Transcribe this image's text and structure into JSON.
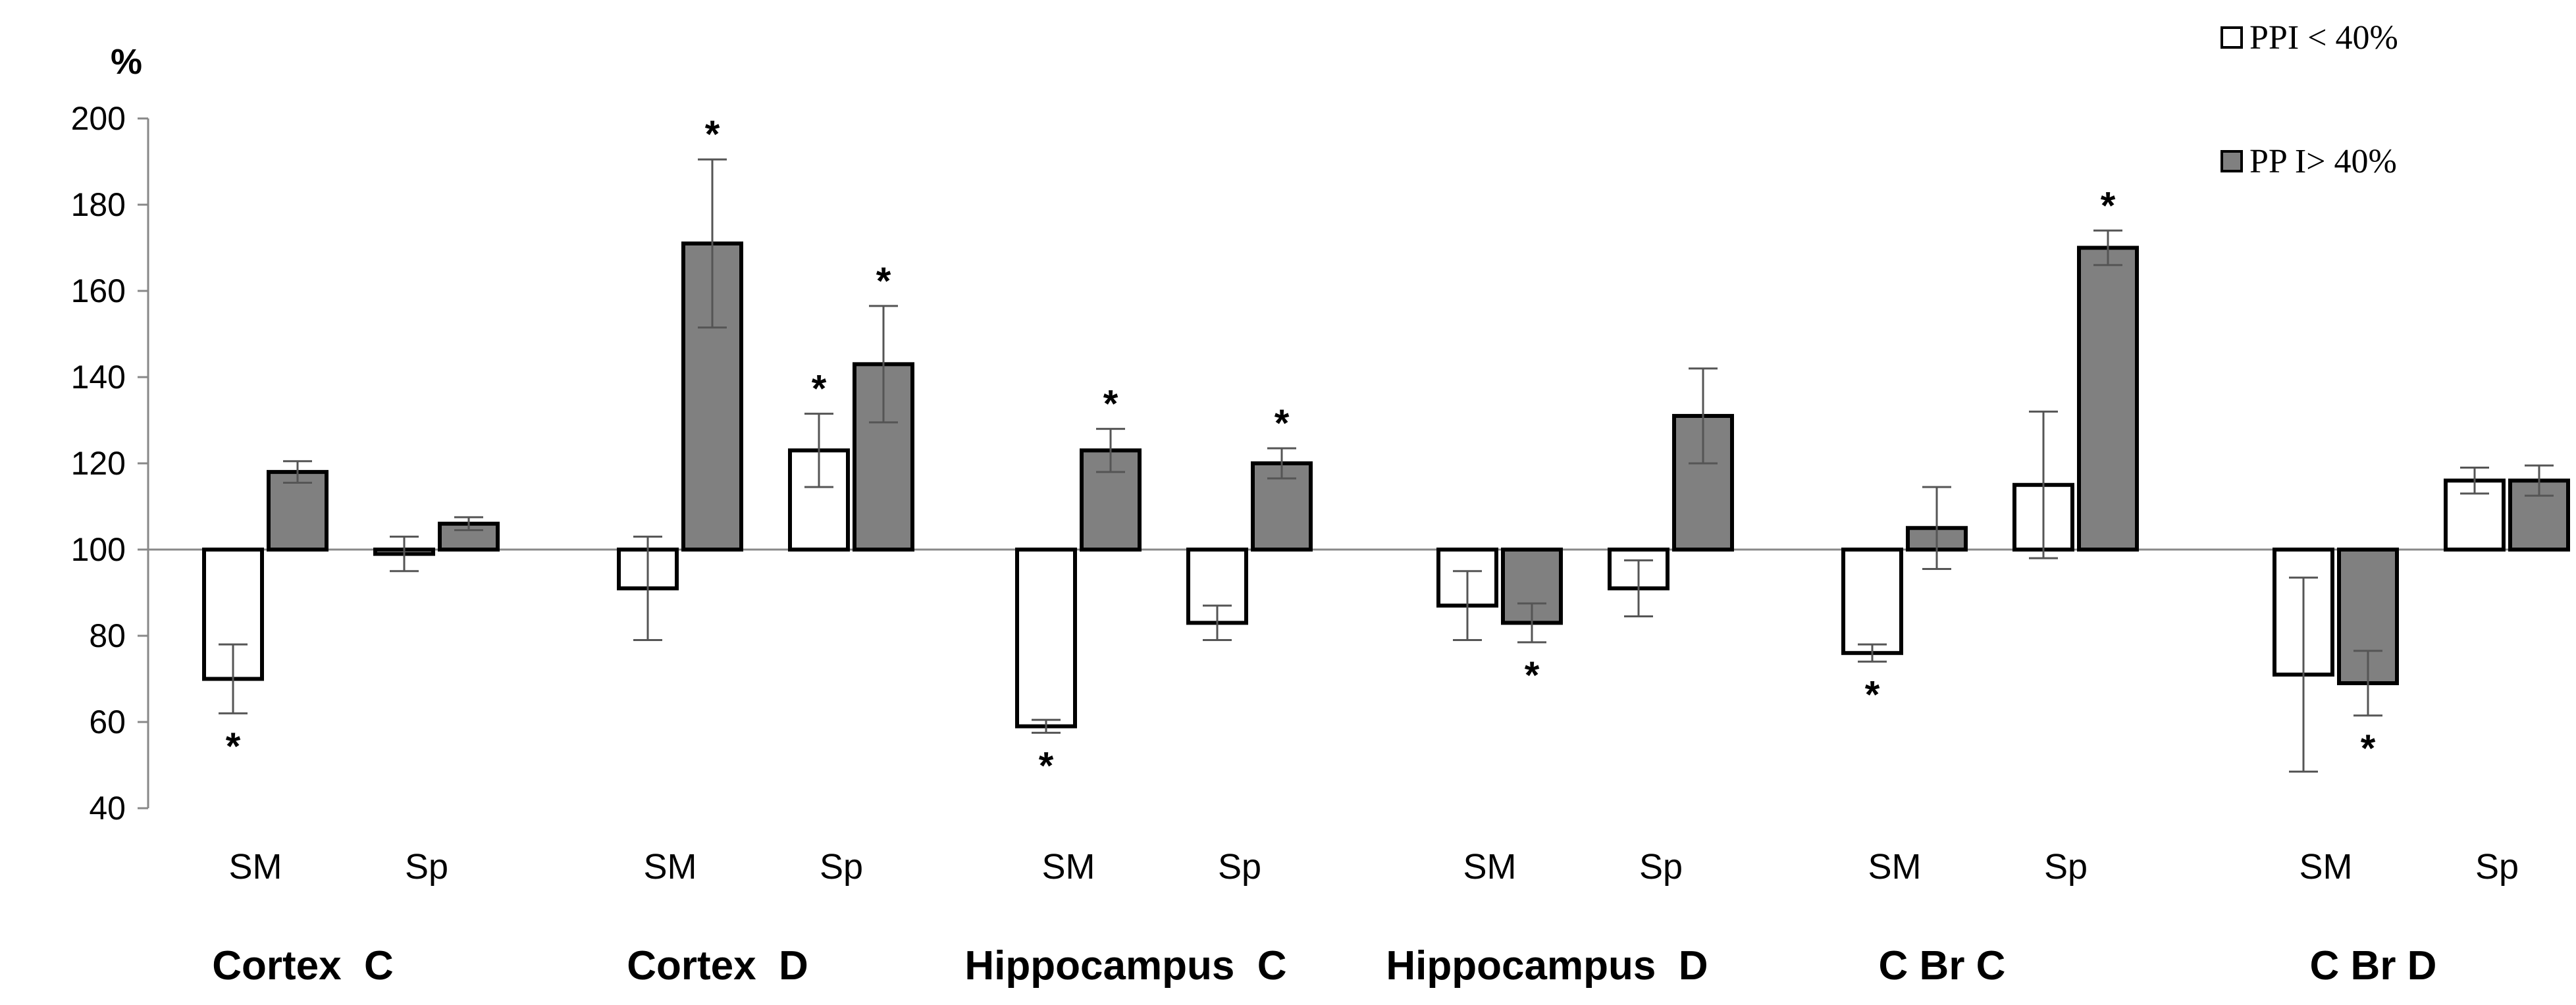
{
  "chart_data": {
    "type": "bar",
    "title": "",
    "ylabel": "%",
    "ylim": [
      40,
      200
    ],
    "yticks": [
      40,
      60,
      80,
      100,
      120,
      140,
      160,
      180,
      200
    ],
    "baseline": 100,
    "groups": [
      "Cortex  C",
      "Cortex  D",
      "Hippocampus  C",
      "Hippocampus  D",
      "C Br C",
      "C Br D"
    ],
    "subcategories": [
      "SM",
      "Sp"
    ],
    "series": [
      {
        "name": "PPI < 40%",
        "color": "#ffffff",
        "values": [
          70,
          99,
          91,
          123,
          59,
          83,
          87,
          91,
          76,
          115,
          71,
          116
        ],
        "errors": [
          8,
          4,
          12,
          8.5,
          1.5,
          4,
          8,
          6.5,
          2,
          17,
          22.5,
          3
        ],
        "significant": [
          true,
          false,
          false,
          true,
          true,
          false,
          false,
          false,
          true,
          false,
          false,
          false
        ]
      },
      {
        "name": "PP I> 40%",
        "color": "#808080",
        "values": [
          118,
          106,
          171,
          143,
          123,
          120,
          83,
          131,
          105,
          170,
          69,
          116
        ],
        "errors": [
          2.5,
          1.5,
          19.5,
          13.5,
          5,
          3.5,
          4.5,
          11,
          9.5,
          4,
          7.5,
          3.5
        ],
        "significant": [
          false,
          false,
          true,
          true,
          true,
          true,
          true,
          false,
          false,
          true,
          true,
          false
        ]
      }
    ],
    "significance_marker": "*",
    "legend": {
      "position": "top-right",
      "entries": [
        "PPI < 40%",
        "PP I> 40%"
      ]
    },
    "grid": false
  }
}
